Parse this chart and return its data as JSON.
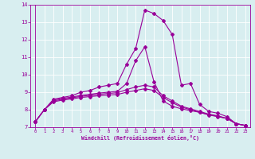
{
  "xlabel": "Windchill (Refroidissement éolien,°C)",
  "x_hours": [
    0,
    1,
    2,
    3,
    4,
    5,
    6,
    7,
    8,
    9,
    10,
    11,
    12,
    13,
    14,
    15,
    16,
    17,
    18,
    19,
    20,
    21,
    22,
    23
  ],
  "line1": [
    7.3,
    8.0,
    8.6,
    8.7,
    8.8,
    9.0,
    9.1,
    9.3,
    9.4,
    9.5,
    10.6,
    11.5,
    13.7,
    13.5,
    13.1,
    12.3,
    9.4,
    9.5,
    8.3,
    7.9,
    7.8,
    7.6,
    7.2,
    7.1
  ],
  "line2": [
    7.3,
    8.0,
    8.55,
    8.65,
    8.72,
    8.82,
    8.88,
    8.95,
    9.0,
    9.05,
    9.5,
    10.8,
    11.6,
    9.6,
    8.5,
    8.2,
    8.05,
    7.95,
    7.85,
    7.7,
    7.6,
    7.5,
    7.2,
    7.1
  ],
  "line3": [
    7.3,
    8.0,
    8.5,
    8.6,
    8.68,
    8.76,
    8.82,
    8.88,
    8.93,
    8.97,
    9.15,
    9.3,
    9.4,
    9.3,
    8.8,
    8.5,
    8.2,
    8.05,
    7.9,
    7.75,
    7.65,
    7.5,
    7.2,
    7.1
  ],
  "line4": [
    7.3,
    8.0,
    8.45,
    8.55,
    8.62,
    8.7,
    8.75,
    8.8,
    8.84,
    8.87,
    9.0,
    9.1,
    9.2,
    9.1,
    8.7,
    8.4,
    8.15,
    8.0,
    7.85,
    7.72,
    7.62,
    7.5,
    7.2,
    7.1
  ],
  "line_color": "#990099",
  "bg_color": "#d8eef0",
  "grid_color": "#ffffff",
  "ylim": [
    7,
    14
  ],
  "yticks": [
    7,
    8,
    9,
    10,
    11,
    12,
    13,
    14
  ],
  "xlim": [
    0,
    23
  ],
  "xticks": [
    0,
    1,
    2,
    3,
    4,
    5,
    6,
    7,
    8,
    9,
    10,
    11,
    12,
    13,
    14,
    15,
    16,
    17,
    18,
    19,
    20,
    21,
    22,
    23
  ]
}
